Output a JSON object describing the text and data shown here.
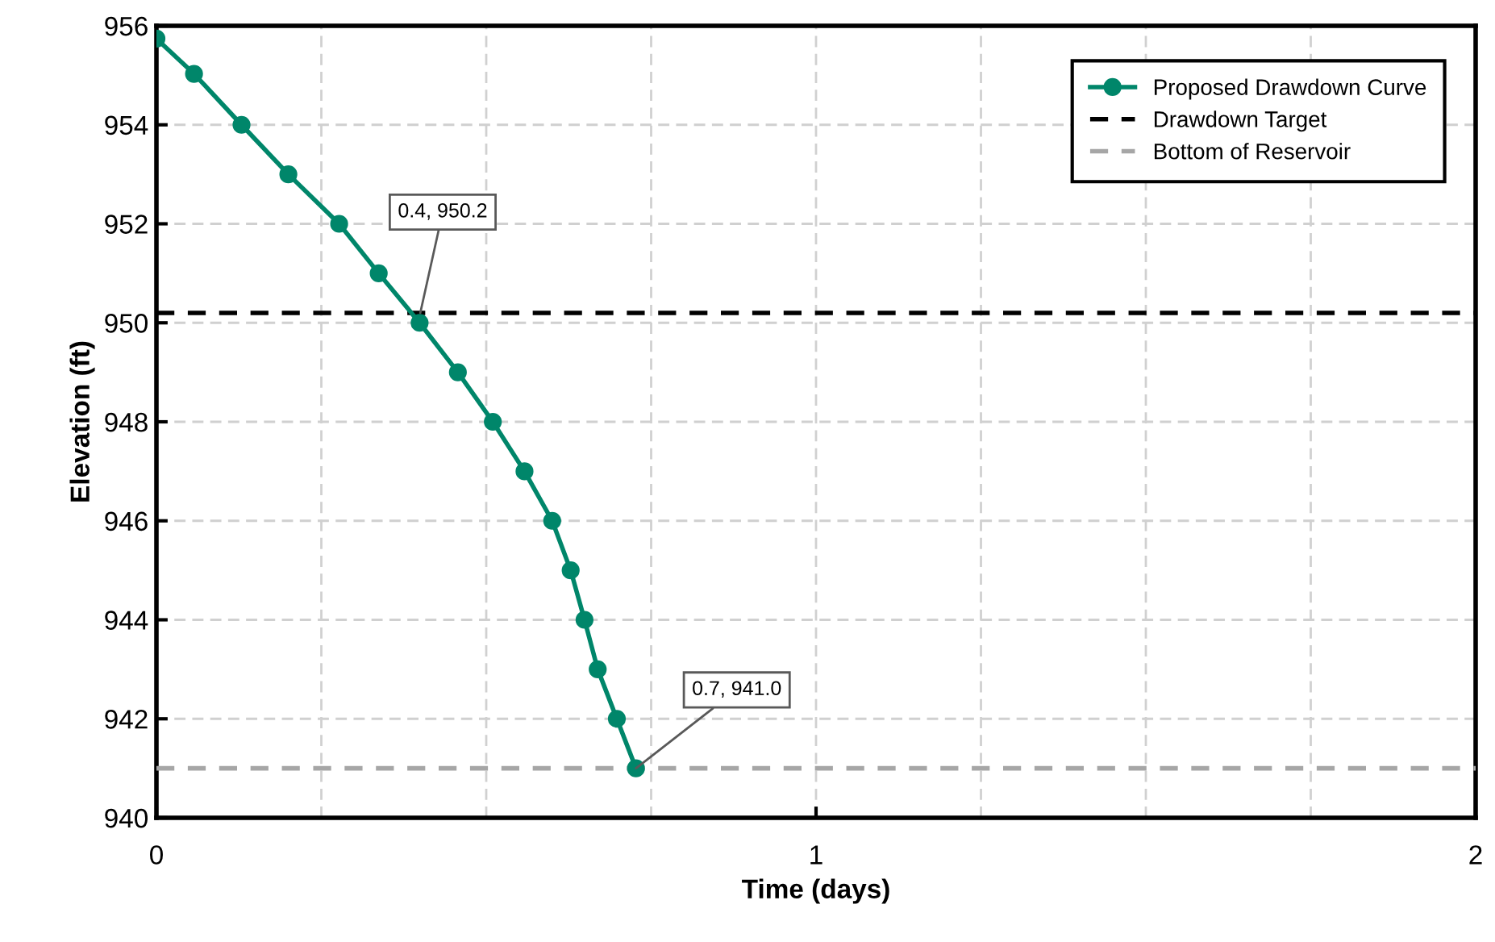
{
  "chart_data": {
    "type": "line",
    "xlabel": "Time (days)",
    "ylabel": "Elevation (ft)",
    "x": [
      0,
      0.057,
      0.129,
      0.2,
      0.277,
      0.337,
      0.399,
      0.457,
      0.51,
      0.558,
      0.6,
      0.628,
      0.649,
      0.669,
      0.698,
      0.727
    ],
    "series": [
      {
        "name": "Proposed Drawdown Curve",
        "color": "#00866a",
        "values": [
          955.74,
          955.03,
          954.0,
          953.0,
          952.0,
          951.0,
          950.0,
          949.0,
          948.0,
          947.0,
          946.0,
          945.0,
          944.0,
          943.0,
          942.0,
          941.0
        ]
      }
    ],
    "marker": "circle",
    "line_style": "solid",
    "ref_lines": [
      {
        "axis": "y",
        "value": 950.2,
        "label": "Drawdown Target",
        "color": "#000000",
        "line_style": "dashed"
      },
      {
        "axis": "y",
        "value": 941.0,
        "label": "Bottom of Reservoir",
        "color": "#a6a6a6",
        "line_style": "dashed"
      }
    ],
    "annotations": [
      {
        "text": "0.4, 950.2",
        "x": 0.4,
        "y": 950.2
      },
      {
        "text": "0.7, 941.0",
        "x": 0.727,
        "y": 941.0
      }
    ],
    "xlim": [
      0,
      2
    ],
    "xticks": [
      0,
      1,
      2
    ],
    "ylim": [
      940,
      956
    ],
    "yticks": [
      940,
      942,
      944,
      946,
      948,
      950,
      952,
      954,
      956
    ],
    "grid": true,
    "legend": "top right"
  }
}
